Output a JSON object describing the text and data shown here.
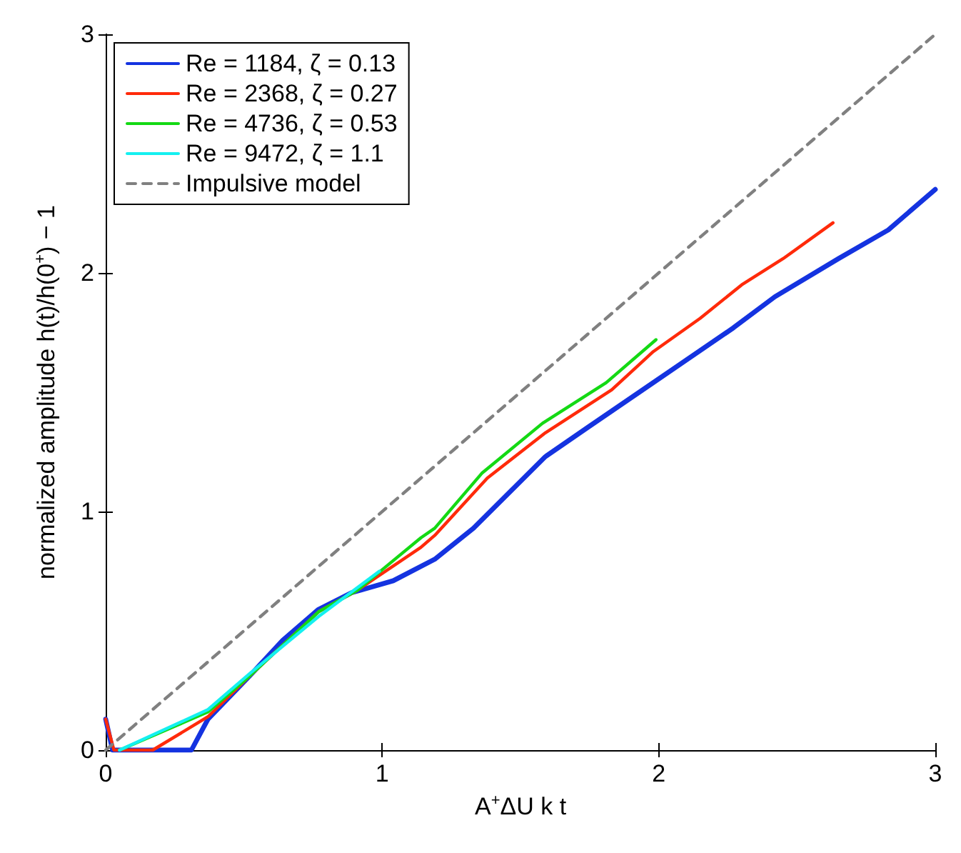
{
  "chart_data": {
    "type": "line",
    "xlabel": "A$^{+}$ΔU k t",
    "ylabel": "normalized amplitude h(t)/h(0$^{+}$) − 1",
    "xlim": [
      0,
      3
    ],
    "xticks": [
      0,
      1,
      2,
      3
    ],
    "ylim": [
      0,
      3
    ],
    "yticks": [
      0,
      1,
      2,
      3
    ],
    "grid": false,
    "legend": "top left",
    "marker": "none",
    "line_style": "solid",
    "series": [
      {
        "name": "Re = 1184, ζ = 0.13",
        "color": "#1433e0",
        "x": [
          0,
          0.025,
          0.31,
          0.37,
          0.52,
          0.64,
          0.77,
          0.89,
          1.04,
          1.19,
          1.33,
          1.59,
          1.74,
          1.98,
          2.27,
          2.42,
          2.65,
          2.83,
          3
        ],
        "values": [
          0.13,
          0,
          0,
          0.13,
          0.31,
          0.46,
          0.59,
          0.66,
          0.71,
          0.8,
          0.93,
          1.23,
          1.35,
          1.54,
          1.77,
          1.9,
          2.06,
          2.18,
          2.35
        ]
      },
      {
        "name": "Re = 2368, ζ = 0.27",
        "color": "#ff2a0a",
        "x": [
          0,
          0.03,
          0.17,
          0.37,
          0.52,
          0.77,
          0.91,
          1.14,
          1.19,
          1.38,
          1.59,
          1.83,
          1.98,
          2.15,
          2.3,
          2.45,
          2.63
        ],
        "values": [
          0.13,
          0,
          0,
          0.14,
          0.31,
          0.58,
          0.67,
          0.85,
          0.9,
          1.14,
          1.33,
          1.51,
          1.67,
          1.81,
          1.95,
          2.06,
          2.21
        ]
      },
      {
        "name": "Re = 4736, ζ = 0.53",
        "color": "#14d914",
        "x": [
          0.05,
          0.37,
          0.52,
          0.77,
          0.91,
          1.14,
          1.19,
          1.36,
          1.58,
          1.81,
          1.99
        ],
        "values": [
          0,
          0.16,
          0.31,
          0.58,
          0.67,
          0.89,
          0.93,
          1.16,
          1.37,
          1.54,
          1.72
        ]
      },
      {
        "name": "Re = 9472, ζ = 1.1",
        "color": "#14f0f0",
        "x": [
          0.05,
          0.37,
          0.52,
          0.77,
          0.99
        ],
        "values": [
          0,
          0.17,
          0.32,
          0.56,
          0.75
        ]
      },
      {
        "name": "Impulsive model",
        "color": "#808080",
        "line_style": "dashed",
        "x": [
          0,
          3
        ],
        "values": [
          0,
          3
        ]
      }
    ]
  }
}
